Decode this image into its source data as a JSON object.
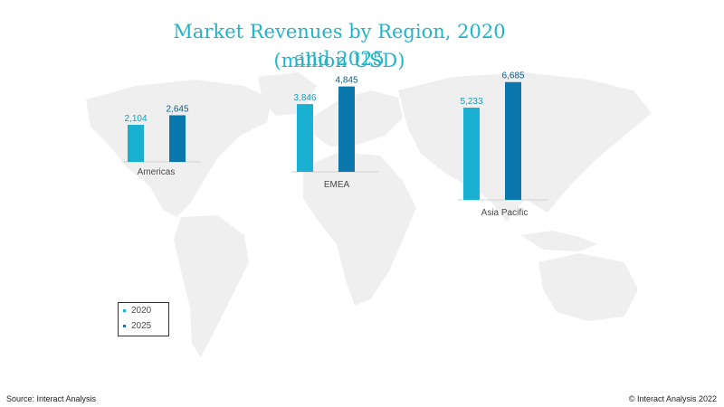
{
  "title_line1": "Market Revenues by Region, 2020 and 2025",
  "title_line2": "(million USD)",
  "colors": {
    "2020": "#1ab0d2",
    "2025": "#0a78ad",
    "title": "#1fb5c9",
    "map": "#efefef"
  },
  "chart_data": {
    "type": "bar",
    "title": "Market Revenues by Region, 2020 and 2025 (million USD)",
    "categories": [
      "Americas",
      "EMEA",
      "Asia Pacific"
    ],
    "series": [
      {
        "name": "2020",
        "values": [
          2104,
          3846,
          5233
        ],
        "labels": [
          "2,104",
          "3,846",
          "5,233"
        ]
      },
      {
        "name": "2025",
        "values": [
          2645,
          4845,
          6685
        ],
        "labels": [
          "2,645",
          "4,845",
          "6,685"
        ]
      }
    ],
    "legend_placement": "bottom-left",
    "grid": false
  },
  "legend": [
    {
      "label": "2020"
    },
    {
      "label": "2025"
    }
  ],
  "footer": {
    "source": "Source: Interact Analysis",
    "copyright": "© Interact Analysis 2022"
  }
}
